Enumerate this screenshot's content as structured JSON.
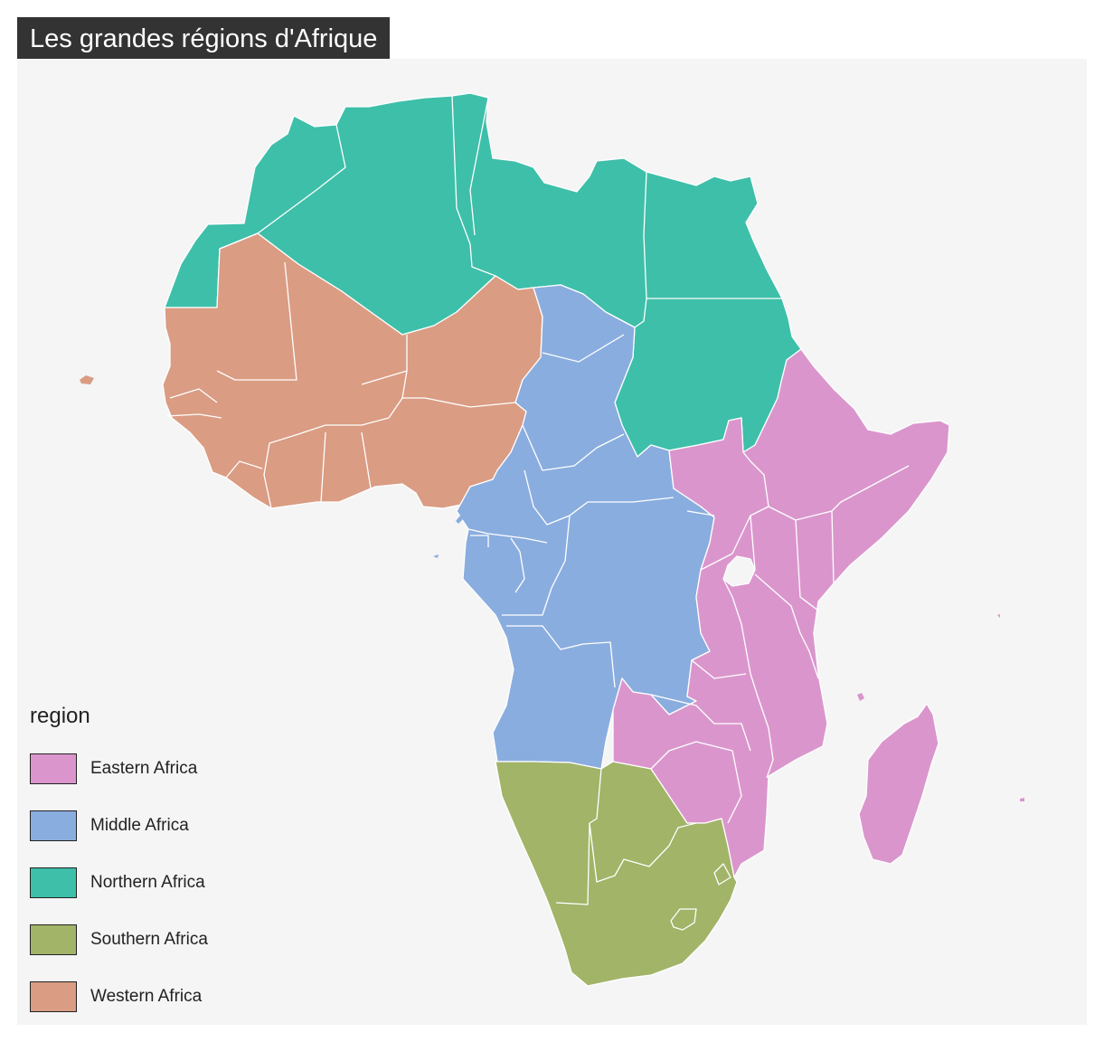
{
  "title": "Les grandes régions d'Afrique",
  "legend": {
    "title": "region",
    "items": [
      {
        "label": "Eastern Africa",
        "color": "#da96cc"
      },
      {
        "label": "Middle Africa",
        "color": "#8aaddf"
      },
      {
        "label": "Northern Africa",
        "color": "#3ebfa9"
      },
      {
        "label": "Southern Africa",
        "color": "#a1b468"
      },
      {
        "label": "Western Africa",
        "color": "#da9c83"
      }
    ]
  },
  "map": {
    "type": "choropleth",
    "region_colors": {
      "eastern": "#da96cc",
      "middle": "#8aaddf",
      "northern": "#3ebfa9",
      "southern": "#a1b468",
      "western": "#da9c83"
    },
    "border_color": "#ffffff",
    "background": "#f5f5f5"
  }
}
